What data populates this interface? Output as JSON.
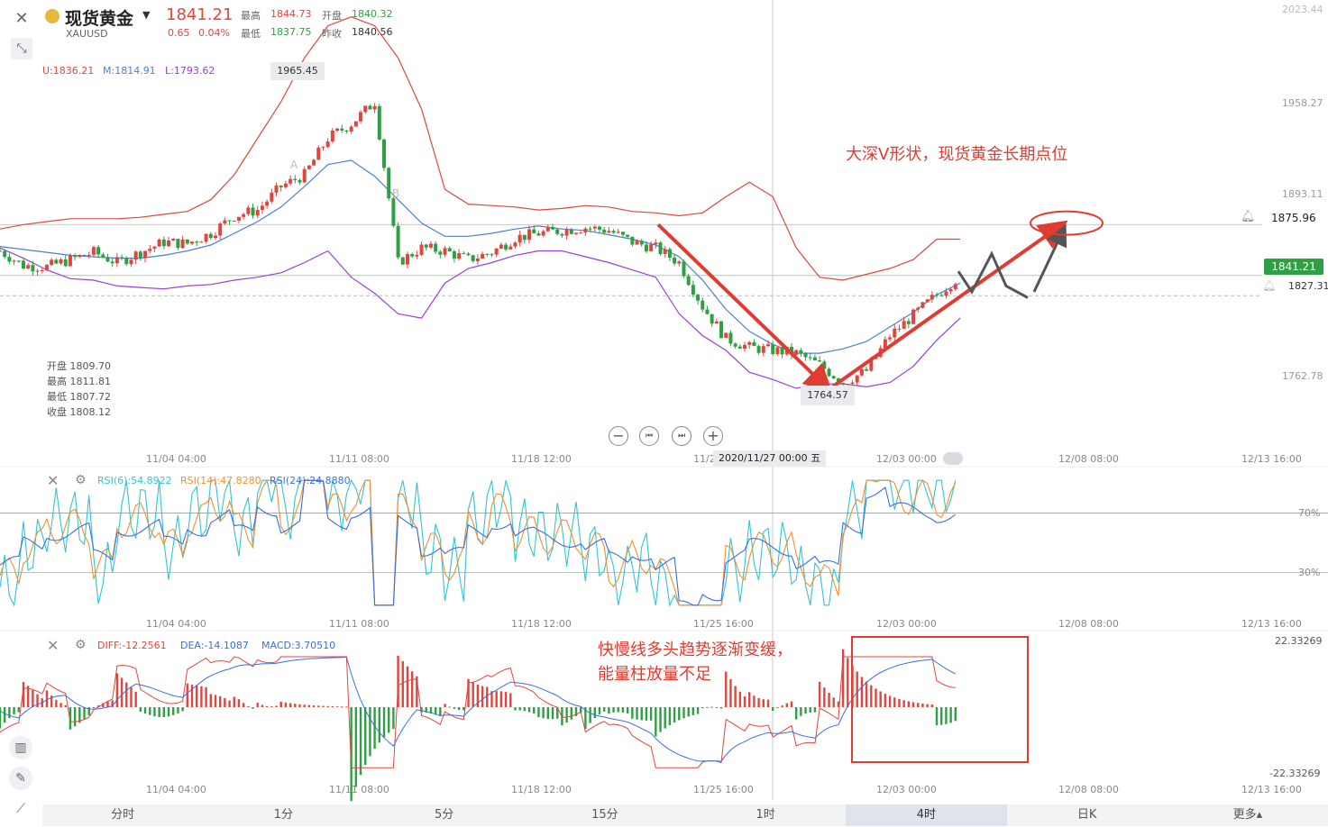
{
  "header": {
    "title": "现货黄金",
    "symbol": "XAUUSD",
    "price": "1841.21",
    "change": "0.65",
    "change_pct": "0.04%",
    "high_label": "最高",
    "high": "1844.73",
    "low_label": "最低",
    "low": "1837.75",
    "open_label": "开盘",
    "open": "1840.32",
    "prev_label": "昨收",
    "prev": "1840.56"
  },
  "boll_legend": {
    "u": "U:1836.21",
    "m": "M:1814.91",
    "l": "L:1793.62"
  },
  "ohlc_box": {
    "open": "开盘 1809.70",
    "high": "最高 1811.81",
    "low": "最低 1807.72",
    "close": "收盘 1808.12"
  },
  "price_axis": [
    "2023.44",
    "1958.27",
    "1893.11",
    "1762.78"
  ],
  "price_tags": {
    "alert": "1875.96",
    "current": "1841.21",
    "dashed": "1827.31"
  },
  "markers": {
    "high": "1965.45",
    "low": "1764.57",
    "a": "A",
    "b": "B"
  },
  "crosshair_label": "2020/11/27 00:00 五",
  "x_axis": [
    "11/04 04:00",
    "11/11 08:00",
    "11/18 12:00",
    "11/25 16:00",
    "12/03 00:00",
    "12/08 08:00",
    "12/13 16:00"
  ],
  "x_axis_main": [
    "11/04 04:00",
    "11/11 08:00",
    "11/18 12:00",
    "11/2",
    "12/03 00:00",
    "12/08 08:00",
    "12/13 16:00"
  ],
  "rsi_legend": {
    "r6": "RSI(6):54.8922",
    "r14": "RSI(14):47.8280",
    "r24": "RSI(24):24.8880"
  },
  "rsi_axis": [
    "70%",
    "30%"
  ],
  "macd_legend": {
    "diff": "DIFF:-12.2561",
    "dea": "DEA:-14.1087",
    "macd": "MACD:3.70510"
  },
  "macd_axis": [
    "22.33269",
    "-22.33269"
  ],
  "annotations": {
    "v_shape": "大深V形状，现货黄金长期点位",
    "macd_note1": "快慢线多头趋势逐渐变缓，",
    "macd_note2": "能量柱放量不足"
  },
  "timeframes": [
    "分时",
    "1分",
    "5分",
    "15分",
    "1时",
    "4时",
    "日K",
    "更多▴"
  ],
  "active_timeframe": "4时",
  "colors": {
    "up": "#e0463e",
    "down": "#2ea043",
    "mid": "#4a7fd6",
    "lower": "#9b3fd6",
    "rsi6": "#32c5d2",
    "rsi14": "#f0922b",
    "rsi24": "#3a6fe0",
    "annot": "#e03c31"
  },
  "chart_data": {
    "type": "candlestick",
    "y_price_range": [
      1740,
      2023.44
    ],
    "bands": [
      {
        "name": "U",
        "values": [
          1873,
          1876,
          1878,
          1880,
          1880,
          1880,
          1881,
          1883,
          1885,
          1893,
          1910,
          1935,
          1960,
          1990,
          2012,
          2018,
          2012,
          1990,
          1955,
          1900,
          1890,
          1889,
          1888,
          1886,
          1887,
          1889,
          1888,
          1885,
          1884,
          1882,
          1884,
          1895,
          1905,
          1895,
          1860,
          1840,
          1838,
          1842,
          1846,
          1852,
          1866,
          1866
        ]
      },
      {
        "name": "M",
        "values": [
          1861,
          1859,
          1857,
          1855,
          1854,
          1853,
          1853,
          1855,
          1858,
          1862,
          1870,
          1878,
          1888,
          1902,
          1917,
          1920,
          1909,
          1893,
          1877,
          1868,
          1868,
          1870,
          1873,
          1875,
          1873,
          1872,
          1869,
          1866,
          1862,
          1854,
          1838,
          1818,
          1803,
          1794,
          1788,
          1788,
          1791,
          1796,
          1806,
          1816,
          1828,
          1836
        ]
      },
      {
        "name": "L",
        "values": [
          1860,
          1853,
          1845,
          1839,
          1838,
          1834,
          1833,
          1832,
          1834,
          1835,
          1838,
          1840,
          1843,
          1850,
          1858,
          1840,
          1829,
          1815,
          1812,
          1836,
          1846,
          1850,
          1855,
          1858,
          1858,
          1854,
          1850,
          1845,
          1840,
          1815,
          1800,
          1790,
          1775,
          1770,
          1764,
          1767,
          1767,
          1765,
          1768,
          1779,
          1797,
          1812
        ]
      }
    ],
    "close": [
      1858,
      1848,
      1847,
      1852,
      1857,
      1850,
      1857,
      1864,
      1863,
      1870,
      1882,
      1886,
      1902,
      1910,
      1935,
      1945,
      1960,
      1850,
      1860,
      1858,
      1852,
      1857,
      1867,
      1870,
      1872,
      1874,
      1872,
      1864,
      1860,
      1850,
      1820,
      1798,
      1792,
      1790,
      1788,
      1780,
      1768,
      1776,
      1800,
      1814,
      1828,
      1841
    ]
  }
}
